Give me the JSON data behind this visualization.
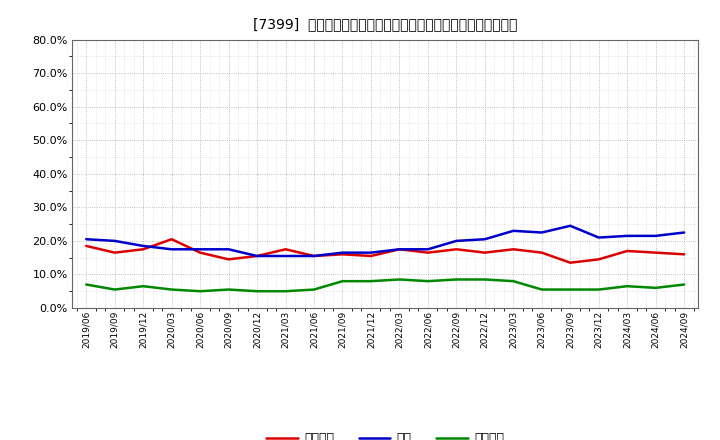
{
  "title": "[7399]  売上債権、在庫、買入債務の総資産に対する比率の推移",
  "x_labels": [
    "2019/06",
    "2019/09",
    "2019/12",
    "2020/03",
    "2020/06",
    "2020/09",
    "2020/12",
    "2021/03",
    "2021/06",
    "2021/09",
    "2021/12",
    "2022/03",
    "2022/06",
    "2022/09",
    "2022/12",
    "2023/03",
    "2023/06",
    "2023/09",
    "2023/12",
    "2024/03",
    "2024/06",
    "2024/09"
  ],
  "series_order": [
    "売上債権",
    "在庫",
    "買入債務"
  ],
  "series": {
    "売上債権": {
      "color": "#dd0000",
      "values": [
        0.185,
        0.165,
        0.175,
        0.205,
        0.165,
        0.145,
        0.155,
        0.175,
        0.155,
        0.16,
        0.155,
        0.175,
        0.165,
        0.175,
        0.165,
        0.175,
        0.165,
        0.135,
        0.145,
        0.17,
        0.165,
        0.16
      ]
    },
    "在庫": {
      "color": "#0000cc",
      "values": [
        0.205,
        0.2,
        0.185,
        0.175,
        0.175,
        0.175,
        0.155,
        0.155,
        0.155,
        0.165,
        0.165,
        0.175,
        0.175,
        0.2,
        0.205,
        0.23,
        0.225,
        0.245,
        0.21,
        0.215,
        0.215,
        0.225
      ]
    },
    "買入債務": {
      "color": "#008800",
      "values": [
        0.07,
        0.055,
        0.065,
        0.055,
        0.05,
        0.055,
        0.05,
        0.05,
        0.055,
        0.08,
        0.08,
        0.085,
        0.08,
        0.085,
        0.085,
        0.08,
        0.055,
        0.055,
        0.055,
        0.065,
        0.06,
        0.07
      ]
    }
  },
  "ylim": [
    0.0,
    0.8
  ],
  "yticks": [
    0.0,
    0.1,
    0.2,
    0.3,
    0.4,
    0.5,
    0.6,
    0.7,
    0.8
  ],
  "background_color": "#ffffff",
  "plot_bg_color": "#ffffff",
  "grid_color": "#999999",
  "title_fontsize": 10,
  "legend_fontsize": 9
}
